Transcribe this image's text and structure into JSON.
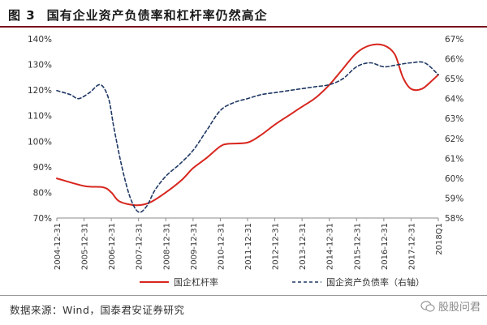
{
  "figure": {
    "label": "图 3",
    "title": "国有企业资产负债率和杠杆率仍然高企"
  },
  "source": "数据来源：Wind，国泰君安证券研究",
  "watermark": "股股问君",
  "colors": {
    "series1": "#d7261e",
    "series2": "#1f3864",
    "title_rule": "#7a0a1a",
    "axis": "#888888"
  },
  "chart_data": {
    "type": "line",
    "categories": [
      "2004-12-31",
      "2005-12-31",
      "2006-12-31",
      "2007-12-31",
      "2008-12-31",
      "2009-12-31",
      "2010-12-31",
      "2011-12-31",
      "2012-12-31",
      "2013-12-31",
      "2014-12-31",
      "2015-12-31",
      "2016-12-31",
      "2017-12-31",
      "2018Q1"
    ],
    "left_axis": {
      "ylim": [
        70,
        140
      ],
      "ticks": [
        "70%",
        "80%",
        "90%",
        "100%",
        "110%",
        "120%",
        "130%",
        "140%"
      ],
      "tick_values": [
        70,
        80,
        90,
        100,
        110,
        120,
        130,
        140
      ]
    },
    "right_axis": {
      "ylim": [
        58,
        67
      ],
      "ticks": [
        "58%",
        "59%",
        "60%",
        "61%",
        "62%",
        "63%",
        "64%",
        "65%",
        "66%",
        "67%"
      ],
      "tick_values": [
        58,
        59,
        60,
        61,
        62,
        63,
        64,
        65,
        66,
        67
      ]
    },
    "series": [
      {
        "name": "国企杠杆率",
        "axis": "left",
        "style": "solid",
        "x": [
          0,
          1,
          1.7,
          2,
          2.3,
          2.9,
          3.4,
          4,
          4.6,
          5,
          5.5,
          6,
          6.3,
          7,
          7.5,
          8,
          8.5,
          9,
          9.5,
          10,
          10.4,
          11,
          11.5,
          12,
          12.4,
          12.7,
          13,
          13.4,
          13.8,
          14
        ],
        "values": [
          85.5,
          82.5,
          82.0,
          80.0,
          76.5,
          75.0,
          76.0,
          80.0,
          85.0,
          89.5,
          93.5,
          98.0,
          99.0,
          99.5,
          102.5,
          106.5,
          110.0,
          113.5,
          117.0,
          122.0,
          127.0,
          134.5,
          137.5,
          137.5,
          134.0,
          125.0,
          120.5,
          120.5,
          124.0,
          126.0
        ]
      },
      {
        "name": "国企资产负债率（右轴）",
        "axis": "right",
        "style": "dashed",
        "x": [
          0,
          0.5,
          0.8,
          1.2,
          1.6,
          1.9,
          2.1,
          2.4,
          2.7,
          3.0,
          3.3,
          3.6,
          4.0,
          4.5,
          5.0,
          5.5,
          6.0,
          6.5,
          7.0,
          7.5,
          8.0,
          8.5,
          9.0,
          9.5,
          10.0,
          10.5,
          11.0,
          11.5,
          12.0,
          12.5,
          13.0,
          13.5,
          14
        ],
        "values": [
          64.4,
          64.2,
          64.0,
          64.3,
          64.7,
          64.0,
          62.5,
          60.5,
          59.0,
          58.3,
          58.6,
          59.4,
          60.1,
          60.7,
          61.4,
          62.4,
          63.4,
          63.8,
          64.0,
          64.2,
          64.3,
          64.4,
          64.5,
          64.6,
          64.7,
          65.0,
          65.6,
          65.8,
          65.6,
          65.7,
          65.8,
          65.8,
          65.2
        ]
      }
    ],
    "legend_placement": "bottom-center",
    "grid": false
  }
}
